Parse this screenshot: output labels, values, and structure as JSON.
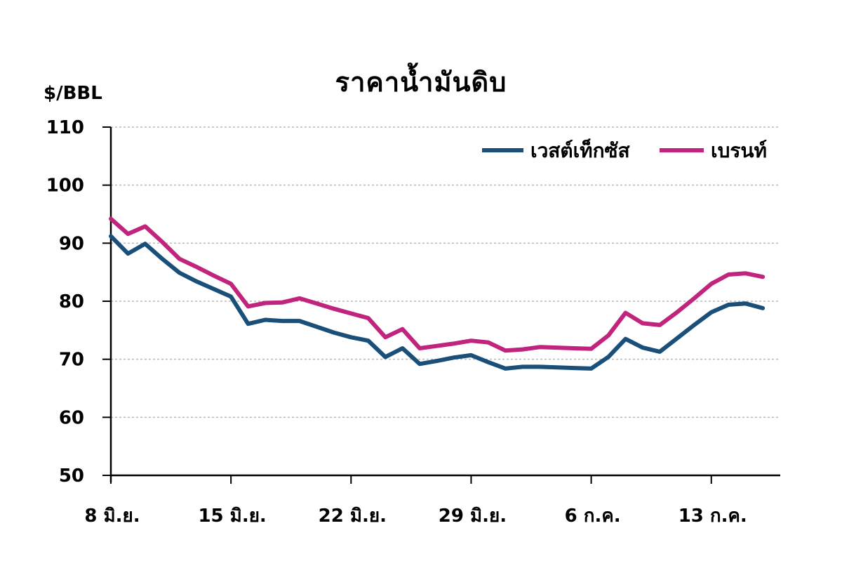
{
  "chart_data": {
    "type": "line",
    "title": "ราคาน้ำมันดิบ",
    "ylabel": "$/BBL",
    "ylim": [
      50,
      110
    ],
    "yticks": [
      50,
      60,
      70,
      80,
      90,
      100,
      110
    ],
    "grid": true,
    "legend_position": "top-right",
    "x_tick_labels": [
      "8 มิ.ย.",
      "15 มิ.ย.",
      "22 มิ.ย.",
      "29 มิ.ย.",
      "6 ก.ค.",
      "13 ก.ค."
    ],
    "x_tick_days": [
      0,
      7,
      14,
      21,
      28,
      35
    ],
    "x_range": [
      0,
      38
    ],
    "series": [
      {
        "name": "เวสต์เท็กซัส",
        "color": "#1a4f7a",
        "x": [
          0,
          1,
          2,
          3,
          4,
          5,
          6,
          7,
          8,
          9,
          10,
          11,
          12,
          13,
          14,
          15,
          16,
          17,
          18,
          19,
          20,
          21,
          22,
          23,
          24,
          25,
          26,
          27,
          28,
          29,
          30,
          31,
          32,
          33,
          34,
          35,
          36,
          37,
          38
        ],
        "values": [
          91.2,
          88.2,
          89.9,
          87.3,
          84.9,
          83.4,
          82.1,
          80.8,
          76.1,
          76.8,
          76.6,
          76.6,
          75.6,
          74.6,
          73.8,
          73.2,
          70.4,
          71.9,
          69.2,
          69.7,
          70.3,
          70.7,
          69.5,
          68.4,
          68.7,
          68.7,
          68.6,
          68.5,
          68.4,
          70.4,
          73.5,
          72.0,
          71.3,
          73.6,
          75.9,
          78.1,
          79.4,
          79.6,
          78.8
        ]
      },
      {
        "name": "เบรนท์",
        "color": "#c0247c",
        "x": [
          0,
          1,
          2,
          3,
          4,
          5,
          6,
          7,
          8,
          9,
          10,
          11,
          12,
          13,
          14,
          15,
          16,
          17,
          18,
          19,
          20,
          21,
          22,
          23,
          24,
          25,
          26,
          27,
          28,
          29,
          30,
          31,
          32,
          33,
          34,
          35,
          36,
          37,
          38
        ],
        "values": [
          94.2,
          91.6,
          92.9,
          90.2,
          87.3,
          85.9,
          84.4,
          83.0,
          79.1,
          79.7,
          79.8,
          80.5,
          79.6,
          78.7,
          77.9,
          77.1,
          73.8,
          75.2,
          71.9,
          72.3,
          72.7,
          73.2,
          72.9,
          71.5,
          71.7,
          72.1,
          72.0,
          71.9,
          71.8,
          74.1,
          78.0,
          76.2,
          75.9,
          78.1,
          80.5,
          83.0,
          84.6,
          84.8,
          84.2
        ]
      }
    ]
  }
}
